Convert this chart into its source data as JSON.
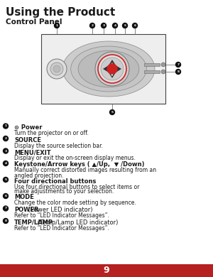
{
  "title": "Using the Product",
  "subtitle": "Control Panel",
  "page_number": "9",
  "background_color": "#ffffff",
  "footer_color": "#b52020",
  "text_color": "#1a1a1a",
  "items": [
    {
      "bold": "⊙ Power",
      "bold2": null,
      "normal": "Turn the projector on or off."
    },
    {
      "bold": "SOURCE",
      "bold2": null,
      "normal": "Display the source selection bar."
    },
    {
      "bold": "MENU/EXIT",
      "bold2": null,
      "normal": "Display or exit the on-screen display menus."
    },
    {
      "bold": "Keystone/Arrow keys ( ▲/Up,  ▼ /Down)",
      "bold2": null,
      "normal": "Manually correct distorted images resulting from an angled projection."
    },
    {
      "bold": "Four directional buttons",
      "bold2": null,
      "normal": "Use four directional buttons to select items or make adjustments to your selection."
    },
    {
      "bold": "MODE",
      "bold2": null,
      "normal": "Change the color mode setting by sequence."
    },
    {
      "bold": "POWER",
      "bold2": " (Power LED indicator)",
      "normal": "Refer to “LED Indicator Messages”."
    },
    {
      "bold": "TEMP/LAMP",
      "bold2": " (Temp/Lamp LED indicator)",
      "normal": "Refer to “LED Indicator Messages”."
    }
  ]
}
